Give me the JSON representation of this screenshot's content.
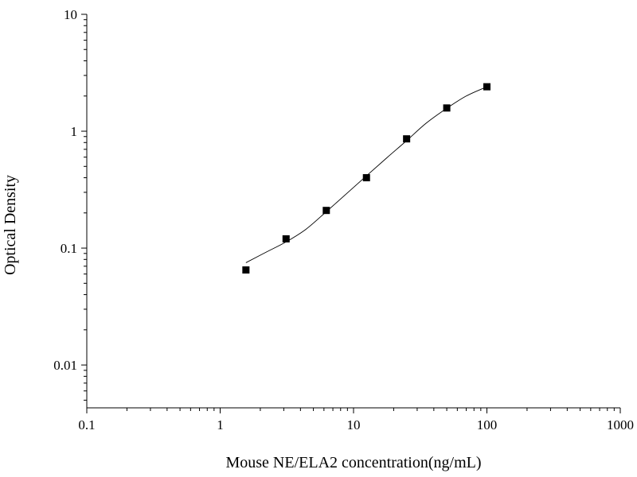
{
  "chart_data": {
    "type": "scatter",
    "xlabel": "Mouse NE/ELA2 concentration(ng/mL)",
    "ylabel": "Optical Density",
    "x_scale": "log",
    "y_scale": "log",
    "xlim": [
      0.1,
      1000
    ],
    "ylim": [
      0.0043,
      10
    ],
    "x_ticks": [
      {
        "value": 0.1,
        "label": "0.1"
      },
      {
        "value": 1,
        "label": "1"
      },
      {
        "value": 10,
        "label": "10"
      },
      {
        "value": 100,
        "label": "100"
      },
      {
        "value": 1000,
        "label": "1000"
      }
    ],
    "y_ticks": [
      {
        "value": 0.01,
        "label": "0.01"
      },
      {
        "value": 0.1,
        "label": "0.1"
      },
      {
        "value": 1,
        "label": "1"
      },
      {
        "value": 10,
        "label": "10"
      }
    ],
    "grid": false,
    "series": [
      {
        "points": [
          {
            "x": 1.56,
            "y": 0.065
          },
          {
            "x": 3.12,
            "y": 0.12
          },
          {
            "x": 6.25,
            "y": 0.21
          },
          {
            "x": 12.5,
            "y": 0.4
          },
          {
            "x": 25,
            "y": 0.86
          },
          {
            "x": 50,
            "y": 1.58
          },
          {
            "x": 100,
            "y": 2.4
          }
        ],
        "marker": "square",
        "color": "#000000"
      }
    ],
    "fit_curve": {
      "type": "line",
      "color": "#000000",
      "points": [
        {
          "x": 1.56,
          "y": 0.075
        },
        {
          "x": 2.2,
          "y": 0.092
        },
        {
          "x": 3.12,
          "y": 0.113
        },
        {
          "x": 4.4,
          "y": 0.145
        },
        {
          "x": 6.25,
          "y": 0.205
        },
        {
          "x": 8.8,
          "y": 0.29
        },
        {
          "x": 12.5,
          "y": 0.415
        },
        {
          "x": 17.7,
          "y": 0.59
        },
        {
          "x": 25,
          "y": 0.83
        },
        {
          "x": 35,
          "y": 1.17
        },
        {
          "x": 50,
          "y": 1.57
        },
        {
          "x": 70,
          "y": 2.0
        },
        {
          "x": 100,
          "y": 2.4
        }
      ]
    }
  }
}
